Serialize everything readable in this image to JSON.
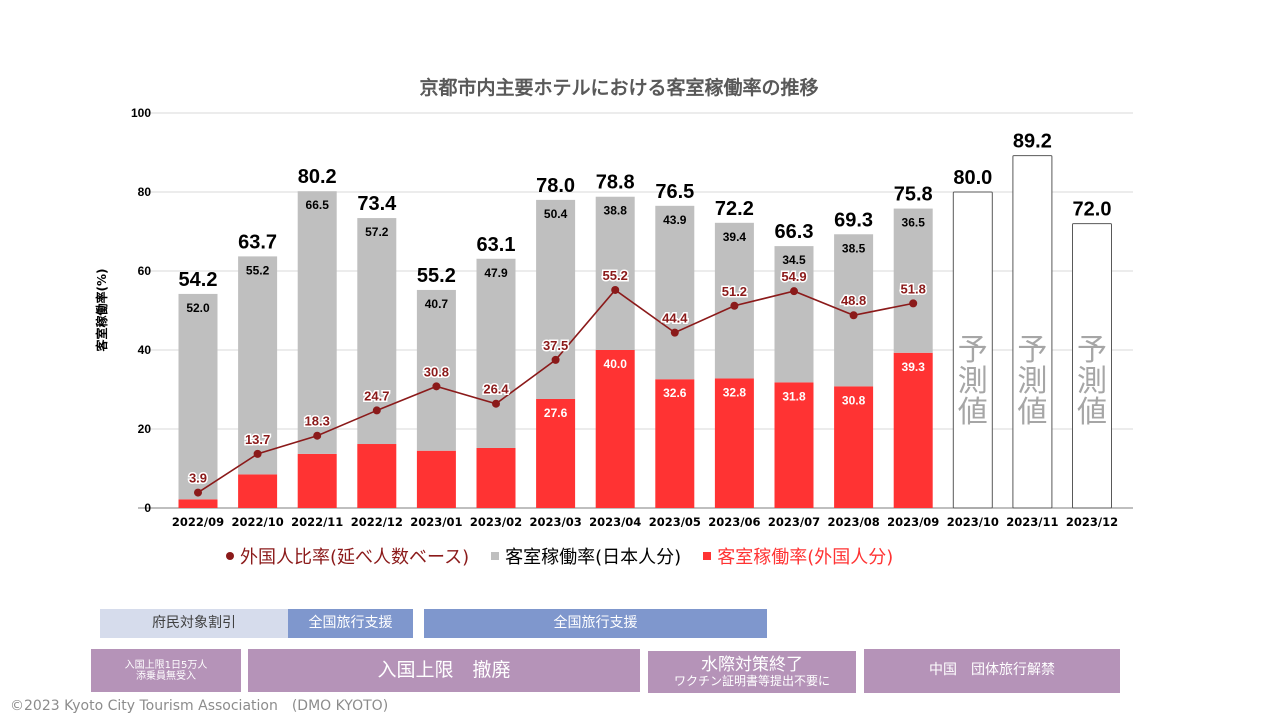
{
  "chart_data": {
    "type": "bar",
    "subtype": "stacked-bar-with-line",
    "title": "京都市内主要ホテルにおける客室稼働率の推移",
    "ylabel": "客室稼働率(%)",
    "xlabel": "",
    "ylim": [
      0,
      100
    ],
    "yticks": [
      0,
      20,
      40,
      60,
      80,
      100
    ],
    "grid": true,
    "legend_position": "bottom",
    "categories": [
      "2022/09",
      "2022/10",
      "2022/11",
      "2022/12",
      "2023/01",
      "2023/02",
      "2023/03",
      "2023/04",
      "2023/05",
      "2023/06",
      "2023/07",
      "2023/08",
      "2023/09",
      "2023/10",
      "2023/11",
      "2023/12"
    ],
    "totals": [
      54.2,
      63.7,
      80.2,
      73.4,
      55.2,
      63.1,
      78.0,
      78.8,
      76.5,
      72.2,
      66.3,
      69.3,
      75.8,
      80.0,
      89.2,
      72.0
    ],
    "total_labels": [
      "54.2",
      "63.7",
      "80.2",
      "73.4",
      "55.2",
      "63.1",
      "78.0",
      "78.8",
      "76.5",
      "72.2",
      "66.3",
      "69.3",
      "75.8",
      "80.0",
      "89.2",
      "72.0"
    ],
    "forecast": [
      false,
      false,
      false,
      false,
      false,
      false,
      false,
      false,
      false,
      false,
      false,
      false,
      false,
      true,
      true,
      true
    ],
    "forecast_label": "予測値",
    "series": [
      {
        "name": "客室稼働率(外国人分)",
        "kind": "bar",
        "color": "#ff3333",
        "values": [
          2.2,
          8.5,
          13.7,
          16.2,
          14.5,
          15.2,
          27.6,
          40.0,
          32.6,
          32.8,
          31.8,
          30.8,
          39.3,
          null,
          null,
          null
        ],
        "labels": [
          "",
          "",
          "",
          "",
          "",
          "",
          "27.6",
          "40.0",
          "32.6",
          "32.8",
          "31.8",
          "30.8",
          "39.3",
          "",
          "",
          ""
        ]
      },
      {
        "name": "客室稼働率(日本人分)",
        "kind": "bar",
        "color": "#bfbfbf",
        "values": [
          52.0,
          55.2,
          66.5,
          57.2,
          40.7,
          47.9,
          50.4,
          38.8,
          43.9,
          39.4,
          34.5,
          38.5,
          36.5,
          null,
          null,
          null
        ],
        "labels": [
          "52.0",
          "55.2",
          "66.5",
          "57.2",
          "40.7",
          "47.9",
          "50.4",
          "38.8",
          "43.9",
          "39.4",
          "34.5",
          "38.5",
          "36.5",
          "",
          "",
          ""
        ]
      },
      {
        "name": "外国人比率(延べ人数ベース)",
        "kind": "line",
        "color": "#8b1a1a",
        "values": [
          3.9,
          13.7,
          18.3,
          24.7,
          30.8,
          26.4,
          37.5,
          55.2,
          44.4,
          51.2,
          54.9,
          48.8,
          51.8,
          null,
          null,
          null
        ],
        "labels": [
          "3.9",
          "13.7",
          "18.3",
          "24.7",
          "30.8",
          "26.4",
          "37.5",
          "55.2",
          "44.4",
          "51.2",
          "54.9",
          "48.8",
          "51.8",
          "",
          "",
          ""
        ]
      }
    ]
  },
  "legend": [
    {
      "label": "外国人比率(延べ人数ベース)",
      "marker": "dot",
      "color": "#8b1a1a"
    },
    {
      "label": "客室稼働率(日本人分)",
      "marker": "square",
      "color": "#bfbfbf",
      "text_color": "#000000"
    },
    {
      "label": "客室稼働率(外国人分)",
      "marker": "square",
      "color": "#ff3333",
      "text_color": "#ff3333"
    }
  ],
  "timeline_row1": [
    {
      "label": "府民対象割引",
      "bg": "#d6dcec",
      "fg": "#404040"
    },
    {
      "label": "全国旅行支援",
      "bg": "#7f97cd",
      "fg": "#ffffff"
    },
    {
      "label": "全国旅行支援",
      "bg": "#7f97cd",
      "fg": "#ffffff"
    }
  ],
  "timeline_row2": [
    {
      "line1": "入国上限1日5万人",
      "line2": "添乗員無受入",
      "bg": "#b593b8"
    },
    {
      "line1": "入国上限　撤廃",
      "line2": "",
      "bg": "#b593b8"
    },
    {
      "line1": "水際対策終了",
      "line2": "ワクチン証明書等提出不要に",
      "bg": "#b593b8"
    },
    {
      "line1": "中国　団体旅行解禁",
      "line2": "",
      "bg": "#b593b8"
    }
  ],
  "footer": "©2023 Kyoto City Tourism Association　(DMO KYOTO)"
}
